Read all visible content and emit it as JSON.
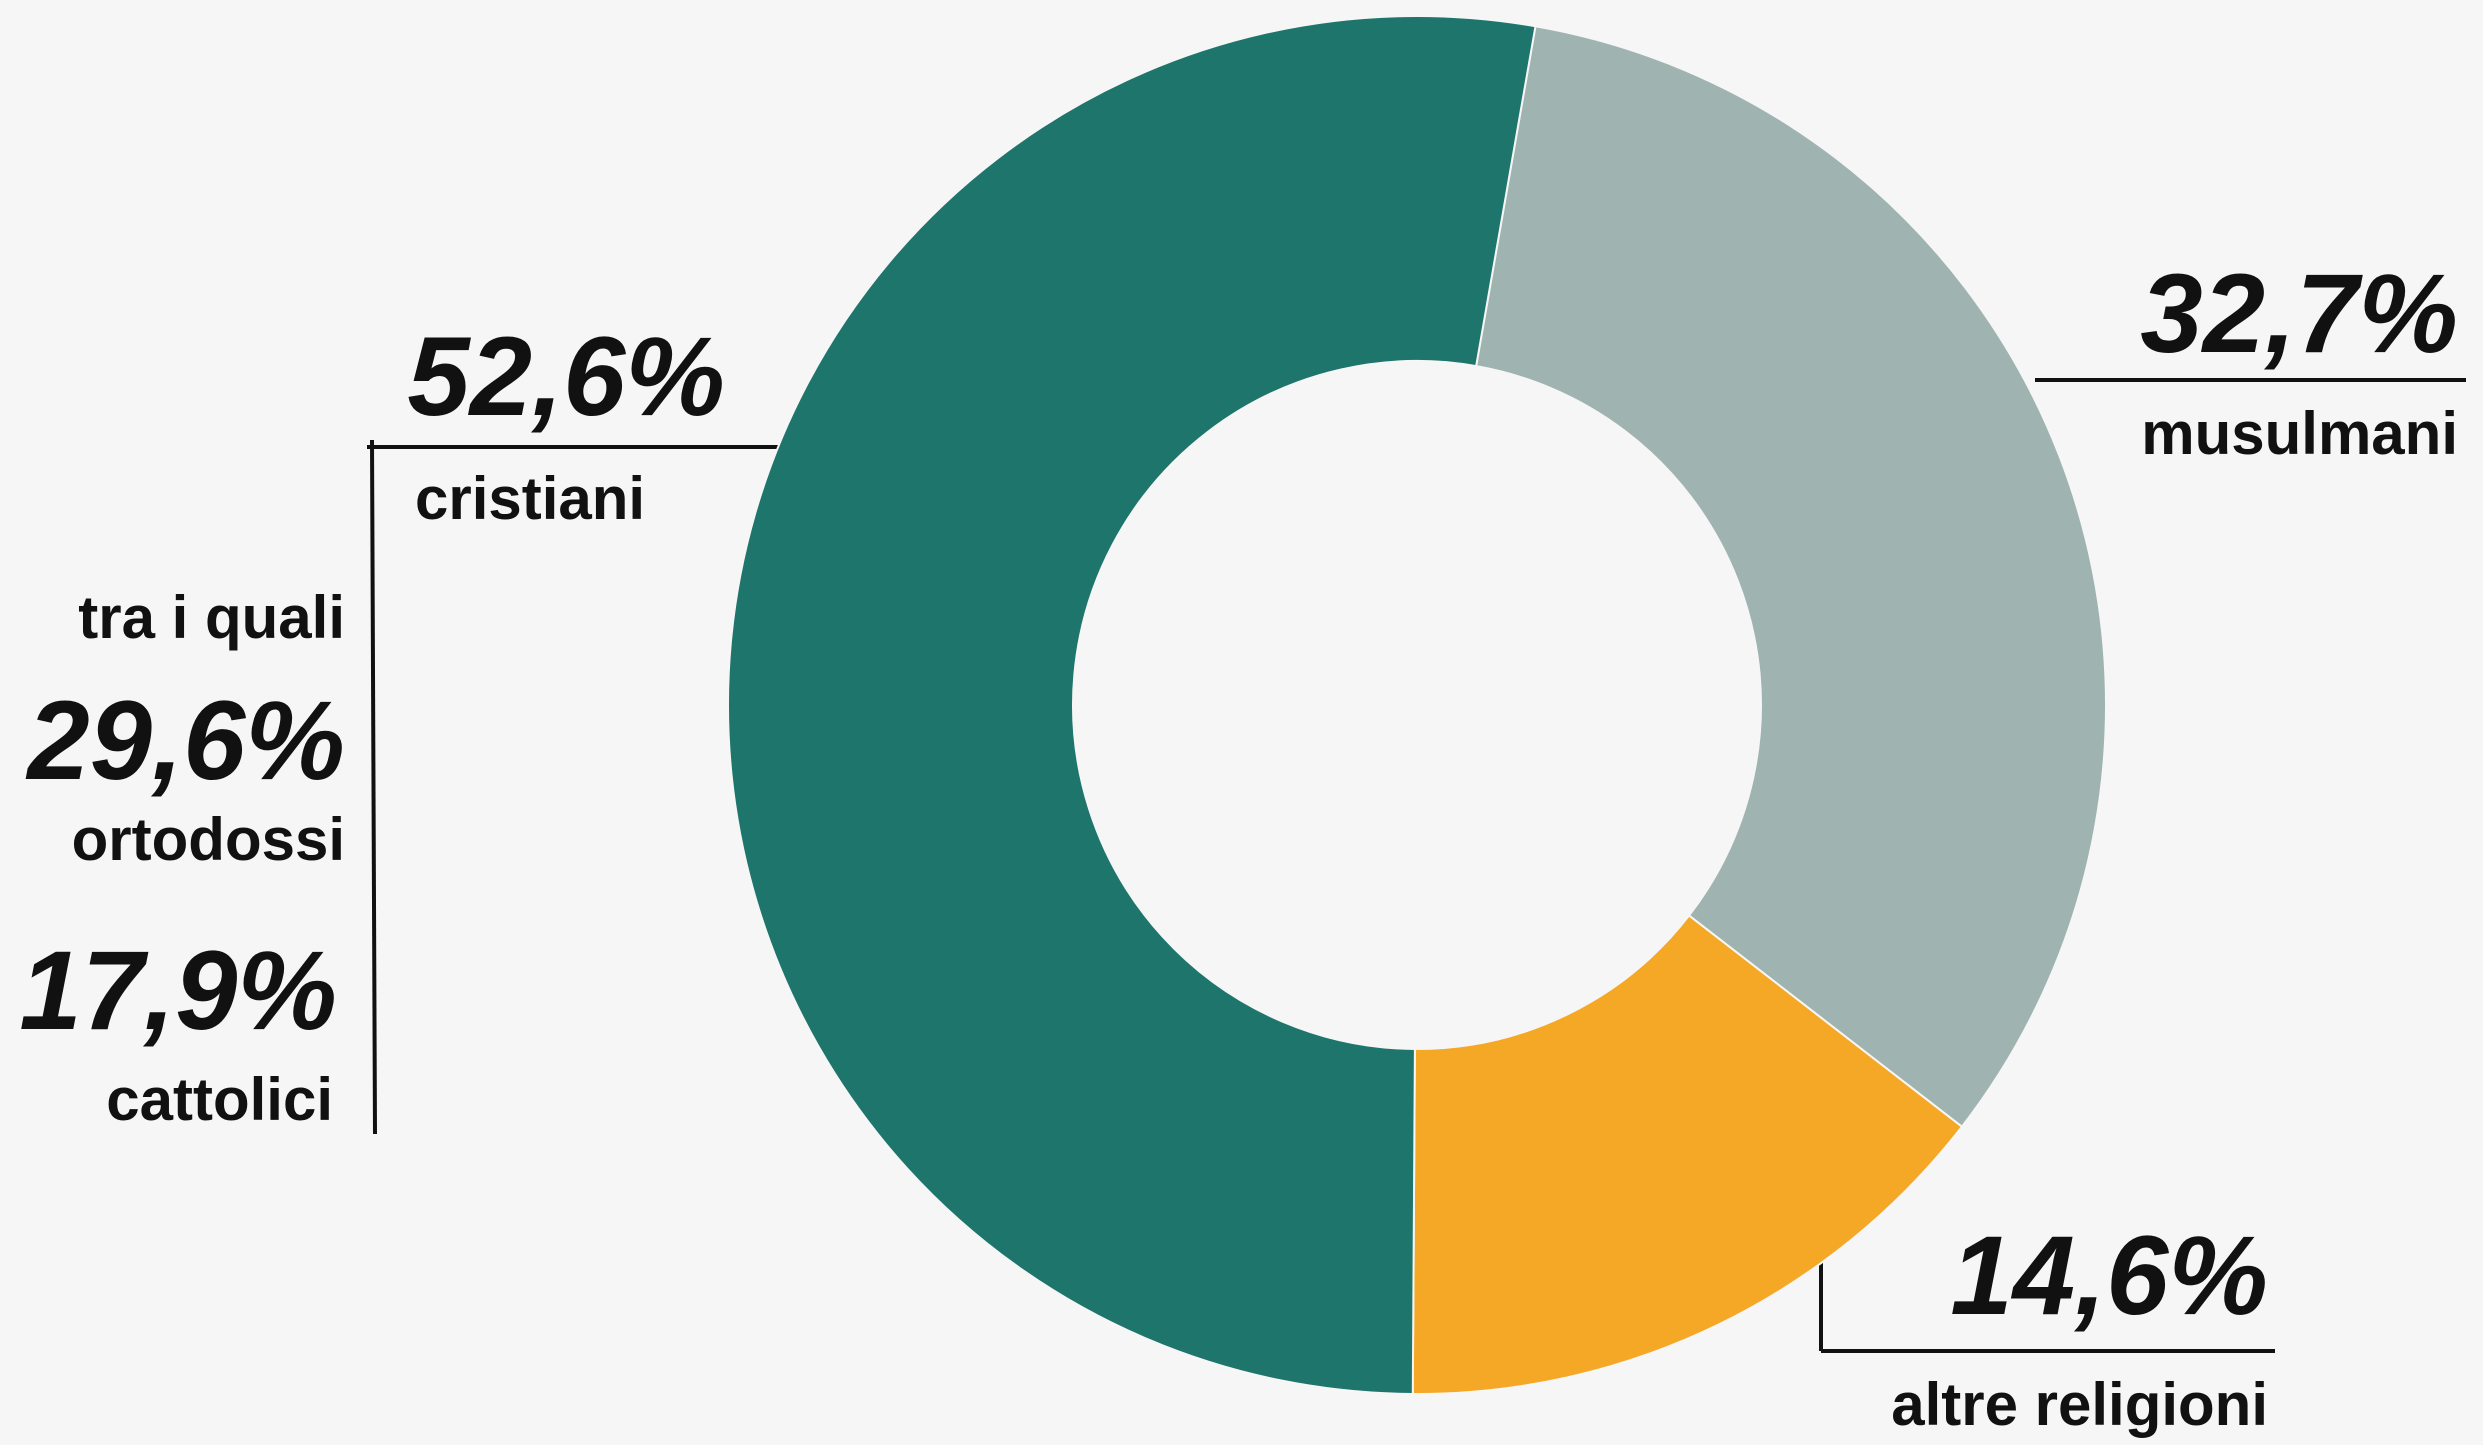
{
  "chart_data": {
    "type": "donut",
    "categories": [
      "musulmani",
      "altre religioni",
      "cristiani"
    ],
    "values": [
      32.7,
      14.6,
      52.6
    ],
    "value_labels": [
      "32,7%",
      "14,6%",
      "52,6%"
    ],
    "colors": [
      "#9fb4b0",
      "#f5a726",
      "#1d756b"
    ],
    "breakdown": {
      "title": "tra i quali",
      "categories": [
        "ortodossi",
        "cattolici"
      ],
      "values": [
        29.6,
        17.9
      ],
      "value_labels": [
        "29,6%",
        "17,9%"
      ]
    }
  }
}
